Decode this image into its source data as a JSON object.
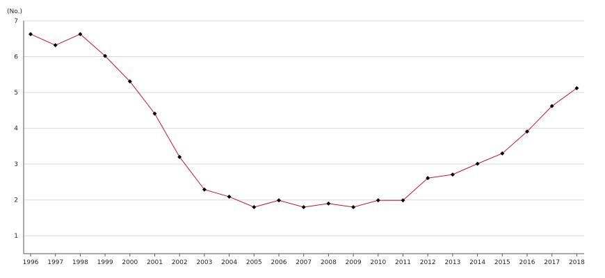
{
  "chart_data": {
    "type": "line",
    "title": "",
    "xlabel": "",
    "ylabel": "",
    "unit_label": "(No.)",
    "x": [
      "1996",
      "1997",
      "1998",
      "1999",
      "2000",
      "2001",
      "2002",
      "2003",
      "2004",
      "2005",
      "2006",
      "2007",
      "2008",
      "2009",
      "2010",
      "2011",
      "2012",
      "2013",
      "2014",
      "2015",
      "2016",
      "2017",
      "2018"
    ],
    "series": [
      {
        "values": [
          6.63,
          6.32,
          6.63,
          6.02,
          5.31,
          4.41,
          3.2,
          2.29,
          2.09,
          1.8,
          1.99,
          1.8,
          1.9,
          1.8,
          1.99,
          1.99,
          2.61,
          2.71,
          3.01,
          3.3,
          3.91,
          4.62,
          5.12
        ],
        "color": "#c8102e",
        "marker": "diamond",
        "marker_color": "#000000"
      }
    ],
    "ylim": [
      0.5,
      7.0
    ],
    "yticks": [
      1,
      2,
      3,
      4,
      5,
      6,
      7
    ],
    "grid": true,
    "legend": "none"
  }
}
